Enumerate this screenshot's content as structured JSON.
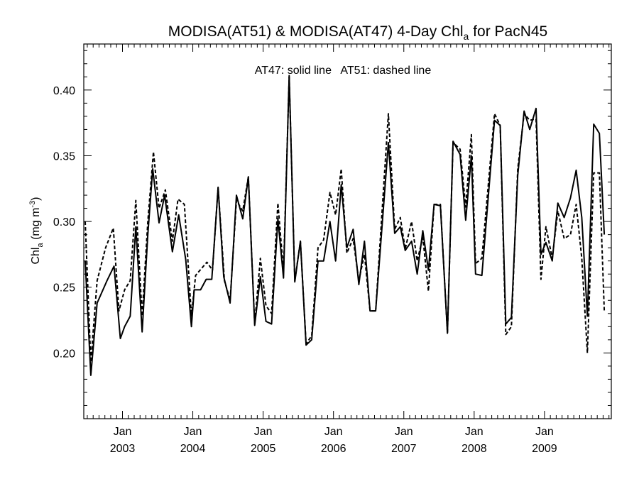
{
  "chart_data": {
    "type": "line",
    "title": {
      "main": "MODISA(AT51) & MODISA(AT47) 4-Day Chl",
      "sub": "a",
      "rest": " for PacN45"
    },
    "annotation": "AT47: solid line   AT51: dashed line",
    "ylabel": {
      "pre": "Chl",
      "sub": "a",
      "mid": " (mg m",
      "sup": "-3",
      "post": ")"
    },
    "ylim": [
      0.15,
      0.435
    ],
    "xlim": [
      2002.45,
      2009.95
    ],
    "y_ticks": [
      0.2,
      0.25,
      0.3,
      0.35,
      0.4
    ],
    "y_tick_labels": [
      "0.20",
      "0.25",
      "0.30",
      "0.35",
      "0.40"
    ],
    "x_ticks": [
      {
        "x": 2003.0,
        "month": "Jan",
        "year": "2003"
      },
      {
        "x": 2004.0,
        "month": "Jan",
        "year": "2004"
      },
      {
        "x": 2005.0,
        "month": "Jan",
        "year": "2005"
      },
      {
        "x": 2006.0,
        "month": "Jan",
        "year": "2006"
      },
      {
        "x": 2007.0,
        "month": "Jan",
        "year": "2007"
      },
      {
        "x": 2008.0,
        "month": "Jan",
        "year": "2008"
      },
      {
        "x": 2009.0,
        "month": "Jan",
        "year": "2009"
      }
    ],
    "grid": false,
    "series": [
      {
        "style": "solid",
        "points": [
          [
            2002.47,
            0.27
          ],
          [
            2002.55,
            0.183
          ],
          [
            2002.64,
            0.238
          ],
          [
            2002.78,
            0.255
          ],
          [
            2002.88,
            0.266
          ],
          [
            2002.97,
            0.211
          ],
          [
            2003.03,
            0.22
          ],
          [
            2003.11,
            0.228
          ],
          [
            2003.19,
            0.296
          ],
          [
            2003.28,
            0.216
          ],
          [
            2003.36,
            0.29
          ],
          [
            2003.43,
            0.34
          ],
          [
            2003.52,
            0.299
          ],
          [
            2003.6,
            0.32
          ],
          [
            2003.71,
            0.277
          ],
          [
            2003.8,
            0.305
          ],
          [
            2003.9,
            0.271
          ],
          [
            2003.98,
            0.22
          ],
          [
            2004.02,
            0.248
          ],
          [
            2004.11,
            0.248
          ],
          [
            2004.19,
            0.256
          ],
          [
            2004.27,
            0.256
          ],
          [
            2004.36,
            0.326
          ],
          [
            2004.44,
            0.258
          ],
          [
            2004.53,
            0.238
          ],
          [
            2004.62,
            0.32
          ],
          [
            2004.71,
            0.302
          ],
          [
            2004.79,
            0.334
          ],
          [
            2004.88,
            0.221
          ],
          [
            2004.96,
            0.258
          ],
          [
            2005.04,
            0.224
          ],
          [
            2005.12,
            0.222
          ],
          [
            2005.21,
            0.302
          ],
          [
            2005.29,
            0.257
          ],
          [
            2005.37,
            0.411
          ],
          [
            2005.45,
            0.254
          ],
          [
            2005.53,
            0.285
          ],
          [
            2005.61,
            0.206
          ],
          [
            2005.69,
            0.21
          ],
          [
            2005.78,
            0.27
          ],
          [
            2005.86,
            0.27
          ],
          [
            2005.95,
            0.3
          ],
          [
            2006.03,
            0.27
          ],
          [
            2006.11,
            0.328
          ],
          [
            2006.19,
            0.28
          ],
          [
            2006.28,
            0.294
          ],
          [
            2006.36,
            0.252
          ],
          [
            2006.44,
            0.285
          ],
          [
            2006.52,
            0.232
          ],
          [
            2006.6,
            0.232
          ],
          [
            2006.78,
            0.36
          ],
          [
            2006.87,
            0.291
          ],
          [
            2006.95,
            0.296
          ],
          [
            2007.02,
            0.278
          ],
          [
            2007.11,
            0.285
          ],
          [
            2007.19,
            0.26
          ],
          [
            2007.27,
            0.293
          ],
          [
            2007.35,
            0.263
          ],
          [
            2007.43,
            0.313
          ],
          [
            2007.52,
            0.312
          ],
          [
            2007.62,
            0.215
          ],
          [
            2007.7,
            0.361
          ],
          [
            2007.8,
            0.351
          ],
          [
            2007.88,
            0.301
          ],
          [
            2007.96,
            0.35
          ],
          [
            2008.02,
            0.26
          ],
          [
            2008.11,
            0.259
          ],
          [
            2008.29,
            0.377
          ],
          [
            2008.37,
            0.373
          ],
          [
            2008.45,
            0.222
          ],
          [
            2008.53,
            0.227
          ],
          [
            2008.62,
            0.335
          ],
          [
            2008.71,
            0.384
          ],
          [
            2008.79,
            0.37
          ],
          [
            2008.88,
            0.386
          ],
          [
            2008.95,
            0.275
          ],
          [
            2009.02,
            0.284
          ],
          [
            2009.11,
            0.27
          ],
          [
            2009.19,
            0.314
          ],
          [
            2009.28,
            0.303
          ],
          [
            2009.37,
            0.318
          ],
          [
            2009.45,
            0.339
          ],
          [
            2009.53,
            0.303
          ],
          [
            2009.61,
            0.228
          ],
          [
            2009.7,
            0.374
          ],
          [
            2009.78,
            0.367
          ],
          [
            2009.85,
            0.29
          ]
        ]
      },
      {
        "style": "dashed",
        "points": [
          [
            2002.47,
            0.3
          ],
          [
            2002.55,
            0.193
          ],
          [
            2002.64,
            0.255
          ],
          [
            2002.76,
            0.28
          ],
          [
            2002.87,
            0.295
          ],
          [
            2002.95,
            0.232
          ],
          [
            2003.03,
            0.248
          ],
          [
            2003.11,
            0.255
          ],
          [
            2003.19,
            0.316
          ],
          [
            2003.28,
            0.228
          ],
          [
            2003.36,
            0.3
          ],
          [
            2003.44,
            0.353
          ],
          [
            2003.52,
            0.31
          ],
          [
            2003.61,
            0.324
          ],
          [
            2003.71,
            0.285
          ],
          [
            2003.79,
            0.317
          ],
          [
            2003.88,
            0.313
          ],
          [
            2003.98,
            0.228
          ],
          [
            2004.04,
            0.259
          ],
          [
            2004.12,
            0.264
          ],
          [
            2004.2,
            0.269
          ],
          [
            2004.28,
            0.263
          ],
          [
            2004.36,
            0.326
          ],
          [
            2004.45,
            0.255
          ],
          [
            2004.53,
            0.24
          ],
          [
            2004.62,
            0.316
          ],
          [
            2004.71,
            0.308
          ],
          [
            2004.79,
            0.334
          ],
          [
            2004.88,
            0.222
          ],
          [
            2004.96,
            0.272
          ],
          [
            2005.04,
            0.236
          ],
          [
            2005.12,
            0.23
          ],
          [
            2005.21,
            0.314
          ],
          [
            2005.29,
            0.262
          ],
          [
            2005.37,
            0.41
          ],
          [
            2005.45,
            0.255
          ],
          [
            2005.53,
            0.285
          ],
          [
            2005.61,
            0.207
          ],
          [
            2005.69,
            0.213
          ],
          [
            2005.78,
            0.28
          ],
          [
            2005.86,
            0.286
          ],
          [
            2005.95,
            0.322
          ],
          [
            2006.03,
            0.305
          ],
          [
            2006.11,
            0.34
          ],
          [
            2006.19,
            0.276
          ],
          [
            2006.28,
            0.287
          ],
          [
            2006.36,
            0.255
          ],
          [
            2006.44,
            0.275
          ],
          [
            2006.52,
            0.232
          ],
          [
            2006.6,
            0.232
          ],
          [
            2006.78,
            0.382
          ],
          [
            2006.87,
            0.294
          ],
          [
            2006.95,
            0.303
          ],
          [
            2007.02,
            0.279
          ],
          [
            2007.11,
            0.3
          ],
          [
            2007.19,
            0.27
          ],
          [
            2007.27,
            0.288
          ],
          [
            2007.35,
            0.247
          ],
          [
            2007.43,
            0.313
          ],
          [
            2007.52,
            0.313
          ],
          [
            2007.62,
            0.215
          ],
          [
            2007.7,
            0.36
          ],
          [
            2007.8,
            0.355
          ],
          [
            2007.88,
            0.311
          ],
          [
            2007.96,
            0.366
          ],
          [
            2008.02,
            0.268
          ],
          [
            2008.11,
            0.272
          ],
          [
            2008.29,
            0.382
          ],
          [
            2008.37,
            0.373
          ],
          [
            2008.45,
            0.214
          ],
          [
            2008.53,
            0.22
          ],
          [
            2008.62,
            0.34
          ],
          [
            2008.71,
            0.382
          ],
          [
            2008.79,
            0.377
          ],
          [
            2008.88,
            0.378
          ],
          [
            2008.95,
            0.256
          ],
          [
            2009.02,
            0.296
          ],
          [
            2009.11,
            0.272
          ],
          [
            2009.19,
            0.308
          ],
          [
            2009.28,
            0.287
          ],
          [
            2009.37,
            0.29
          ],
          [
            2009.45,
            0.313
          ],
          [
            2009.53,
            0.272
          ],
          [
            2009.61,
            0.2
          ],
          [
            2009.7,
            0.337
          ],
          [
            2009.78,
            0.337
          ],
          [
            2009.85,
            0.232
          ]
        ]
      }
    ]
  }
}
